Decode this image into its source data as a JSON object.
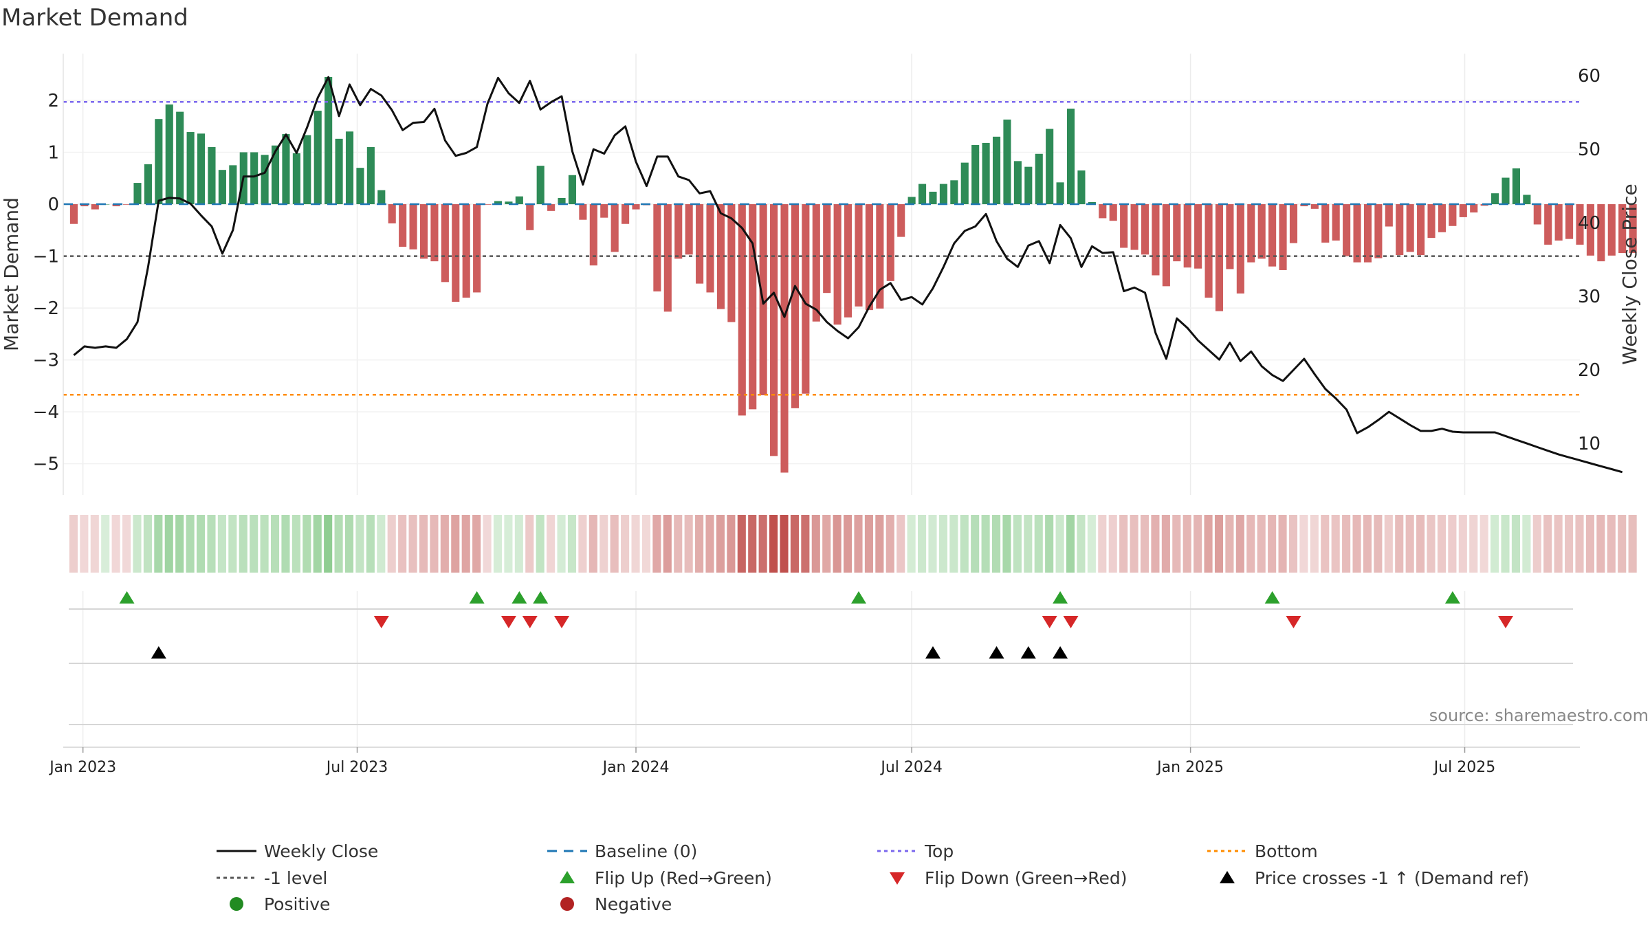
{
  "chart_data": {
    "type": "bar",
    "title": "Market Demand",
    "ylabel": "Market Demand",
    "y2label": "Weekly Close Price",
    "ylim": [
      -5.6,
      2.9
    ],
    "y2lim": [
      3,
      63
    ],
    "yticks": [
      2,
      1,
      0,
      -1,
      -2,
      -3,
      -4,
      -5
    ],
    "yticklabels": [
      "2",
      "1",
      "0",
      "−1",
      "−2",
      "−3",
      "−4",
      "−5"
    ],
    "y2ticks": [
      60,
      50,
      40,
      30,
      20,
      10
    ],
    "x_axis": {
      "start": "2022-12-19",
      "end": "2025-09-15",
      "week_start": "2022-12-26",
      "tick_dates": [
        "2023-01-01",
        "2023-07-01",
        "2024-01-01",
        "2024-07-01",
        "2025-01-01",
        "2025-07-01"
      ],
      "tick_labels": [
        "Jan 2023",
        "Jul 2023",
        "Jan 2024",
        "Jul 2024",
        "Jan 2025",
        "Jul 2025"
      ]
    },
    "reference_lines": {
      "top": 1.97,
      "bottom": -3.67,
      "minus_one_level": -1,
      "baseline": 0
    },
    "colors": {
      "positive": "#2e8b57",
      "negative": "#cd5c5c",
      "price": "#111111",
      "top": "#7b68ee",
      "bottom": "#ff8c00",
      "minus_one": "#555555",
      "baseline": "#1f77b4",
      "flip_up": "#2ca02c",
      "flip_down": "#d62728",
      "cross": "#000000",
      "legend_positive": "#228b22",
      "legend_negative": "#b22222"
    },
    "series": [
      {
        "name": "Market Demand",
        "values": [
          -0.38,
          -0.04,
          -0.1,
          0.0,
          -0.04,
          -0.01,
          0.41,
          0.77,
          1.64,
          1.92,
          1.78,
          1.39,
          1.36,
          1.1,
          0.66,
          0.75,
          1.0,
          1.0,
          0.95,
          1.13,
          1.35,
          0.98,
          1.33,
          1.8,
          2.45,
          1.26,
          1.4,
          0.7,
          1.1,
          0.27,
          -0.37,
          -0.82,
          -0.87,
          -1.05,
          -1.1,
          -1.5,
          -1.88,
          -1.8,
          -1.7,
          -0.01,
          0.06,
          0.05,
          0.15,
          -0.5,
          0.74,
          -0.13,
          0.12,
          0.56,
          -0.3,
          -1.18,
          -0.26,
          -0.92,
          -0.38,
          -0.1,
          -0.02,
          -1.68,
          -2.07,
          -1.05,
          -0.97,
          -1.53,
          -1.7,
          -2.02,
          -2.27,
          -4.07,
          -3.95,
          -3.68,
          -4.85,
          -5.17,
          -3.93,
          -3.65,
          -2.26,
          -1.71,
          -2.32,
          -2.18,
          -1.97,
          -2.04,
          -2.01,
          -1.48,
          -0.63,
          0.14,
          0.39,
          0.24,
          0.39,
          0.46,
          0.8,
          1.14,
          1.18,
          1.3,
          1.63,
          0.83,
          0.72,
          0.97,
          1.45,
          0.42,
          1.84,
          0.65,
          0.04,
          -0.27,
          -0.32,
          -0.84,
          -0.88,
          -0.97,
          -1.37,
          -1.58,
          -1.1,
          -1.22,
          -1.24,
          -1.8,
          -2.06,
          -1.25,
          -1.72,
          -1.12,
          -1.05,
          -1.2,
          -1.27,
          -0.75,
          -0.04,
          -0.09,
          -0.74,
          -0.7,
          -1.0,
          -1.12,
          -1.12,
          -1.04,
          -0.43,
          -0.98,
          -0.92,
          -0.98,
          -0.65,
          -0.54,
          -0.42,
          -0.25,
          -0.16,
          -0.03,
          0.21,
          0.51,
          0.69,
          0.18,
          -0.39,
          -0.78,
          -0.7,
          -0.67,
          -0.78,
          -0.99,
          -1.1,
          -0.99,
          -0.94,
          -0.94
        ]
      },
      {
        "name": "Weekly Close",
        "values": [
          22.0,
          23.2,
          23.0,
          23.2,
          23.0,
          24.2,
          26.5,
          34.0,
          43.0,
          43.4,
          43.3,
          42.6,
          41.0,
          39.5,
          35.8,
          39.0,
          46.3,
          46.3,
          46.8,
          49.7,
          52.0,
          49.5,
          53.0,
          57.0,
          59.8,
          54.5,
          58.8,
          56.0,
          58.2,
          57.3,
          55.3,
          52.6,
          53.6,
          53.7,
          55.5,
          51.2,
          49.1,
          49.5,
          50.3,
          56.2,
          59.7,
          57.6,
          56.3,
          59.3,
          55.4,
          56.4,
          57.2,
          49.7,
          45.2,
          50.0,
          49.4,
          51.9,
          53.1,
          48.3,
          45.0,
          49.0,
          49.0,
          46.3,
          45.8,
          44.0,
          44.3,
          41.3,
          40.6,
          39.3,
          37.2,
          29.0,
          30.5,
          27.2,
          31.4,
          29.0,
          28.2,
          26.5,
          25.3,
          24.3,
          25.8,
          28.6,
          30.9,
          31.8,
          29.5,
          29.9,
          28.9,
          31.1,
          34.0,
          37.2,
          38.9,
          39.5,
          41.2,
          37.5,
          35.1,
          34.0,
          36.9,
          37.5,
          34.5,
          39.7,
          37.9,
          34.0,
          36.8,
          35.9,
          36.0,
          30.7,
          31.2,
          30.5,
          25.0,
          21.5,
          27.0,
          25.7,
          24.0,
          22.7,
          21.4,
          23.7,
          21.2,
          22.5,
          20.5,
          19.3,
          18.5,
          20.0,
          21.5,
          19.4,
          17.4,
          16.1,
          14.6,
          11.4,
          12.2,
          13.2,
          14.3,
          13.4,
          12.5,
          11.7,
          11.7,
          12.0,
          11.6,
          11.5,
          11.5,
          11.5,
          11.5,
          11.0,
          10.5,
          10.0,
          9.5,
          9.0,
          8.5,
          8.1,
          7.7,
          7.3,
          6.9,
          6.5,
          6.1
        ]
      }
    ],
    "strip_caption": "",
    "events": {
      "flip_up": [
        5,
        38,
        42,
        44,
        74,
        93,
        113,
        130
      ],
      "flip_down": [
        29,
        41,
        43,
        46,
        92,
        94,
        115,
        135
      ],
      "price_cross": [
        8,
        81,
        87,
        90,
        93
      ]
    },
    "legend": [
      {
        "label": "Weekly Close",
        "kind": "solid-line",
        "color": "#111111"
      },
      {
        "label": "Baseline (0)",
        "kind": "dashed-line",
        "color": "#1f77b4"
      },
      {
        "label": "Top",
        "kind": "dotted-line",
        "color": "#7b68ee"
      },
      {
        "label": "Bottom",
        "kind": "dotted-line",
        "color": "#ff8c00"
      },
      {
        "label": "-1 level",
        "kind": "dotted-line",
        "color": "#555555"
      },
      {
        "label": "Flip Up (Red→Green)",
        "kind": "triangle-up",
        "color": "#2ca02c"
      },
      {
        "label": "Flip Down (Green→Red)",
        "kind": "triangle-down",
        "color": "#d62728"
      },
      {
        "label": "Price crosses -1 ↑ (Demand ref)",
        "kind": "triangle-up",
        "color": "#000000"
      },
      {
        "label": "Positive",
        "kind": "circle",
        "color": "#228b22"
      },
      {
        "label": "Negative",
        "kind": "circle",
        "color": "#b22222"
      }
    ],
    "source": "source: sharemaestro.com"
  }
}
